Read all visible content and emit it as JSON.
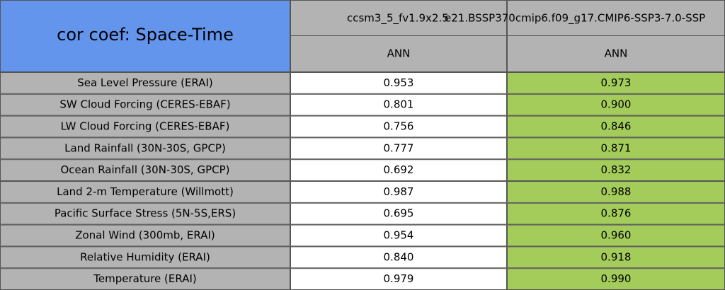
{
  "header": {
    "title": "cor coef: Space-Time"
  },
  "columns": [
    {
      "name": "ccsm3_5_fv1.9x2.5",
      "period": "ANN"
    },
    {
      "name": "e21.BSSP370cmip6.f09_g17.CMIP6-SSP3-7.0-SSP",
      "period": "ANN"
    }
  ],
  "table": {
    "rows": [
      {
        "label": "Sea Level Pressure (ERAI)",
        "values": [
          "0.953",
          "0.973"
        ]
      },
      {
        "label": "SW Cloud Forcing (CERES-EBAF)",
        "values": [
          "0.801",
          "0.900"
        ]
      },
      {
        "label": "LW Cloud Forcing (CERES-EBAF)",
        "values": [
          "0.756",
          "0.846"
        ]
      },
      {
        "label": "Land Rainfall (30N-30S, GPCP)",
        "values": [
          "0.777",
          "0.871"
        ]
      },
      {
        "label": "Ocean Rainfall (30N-30S, GPCP)",
        "values": [
          "0.692",
          "0.832"
        ]
      },
      {
        "label": "Land 2-m Temperature (Willmott)",
        "values": [
          "0.987",
          "0.988"
        ]
      },
      {
        "label": "Pacific Surface Stress (5N-5S,ERS)",
        "values": [
          "0.695",
          "0.876"
        ]
      },
      {
        "label": "Zonal Wind (300mb, ERAI)",
        "values": [
          "0.954",
          "0.960"
        ]
      },
      {
        "label": "Relative Humidity (ERAI)",
        "values": [
          "0.840",
          "0.918"
        ]
      },
      {
        "label": "Temperature (ERAI)",
        "values": [
          "0.979",
          "0.990"
        ]
      }
    ]
  }
}
